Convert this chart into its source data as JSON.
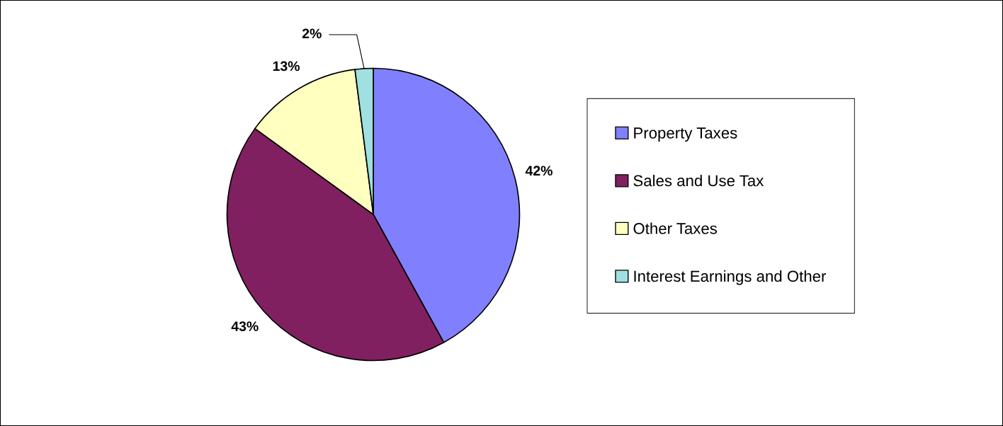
{
  "chart_data": {
    "type": "pie",
    "categories": [
      "Property Taxes",
      "Sales and Use Tax",
      "Other Taxes",
      "Interest Earnings and Other"
    ],
    "values": [
      42,
      43,
      13,
      2
    ],
    "colors": [
      "#8080ff",
      "#802060",
      "#ffffc0",
      "#a0e0e0"
    ],
    "value_labels": [
      "42%",
      "43%",
      "13%",
      "2%"
    ],
    "legend": "right"
  }
}
